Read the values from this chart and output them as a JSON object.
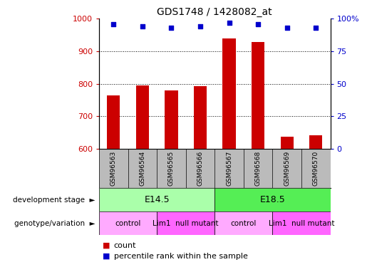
{
  "title": "GDS1748 / 1428082_at",
  "samples": [
    "GSM96563",
    "GSM96564",
    "GSM96565",
    "GSM96566",
    "GSM96567",
    "GSM96568",
    "GSM96569",
    "GSM96570"
  ],
  "counts": [
    765,
    795,
    780,
    792,
    940,
    928,
    637,
    642
  ],
  "percentiles": [
    96,
    94,
    93,
    94,
    97,
    96,
    93,
    93
  ],
  "ylim_left": [
    600,
    1000
  ],
  "ylim_right": [
    0,
    100
  ],
  "yticks_left": [
    600,
    700,
    800,
    900,
    1000
  ],
  "yticks_right": [
    0,
    25,
    50,
    75,
    100
  ],
  "ytick_labels_right": [
    "0",
    "25",
    "50",
    "75",
    "100%"
  ],
  "bar_color": "#CC0000",
  "dot_color": "#0000CC",
  "sample_bg": "#BBBBBB",
  "dev_stage_groups": [
    {
      "label": "E14.5",
      "start": 0,
      "end": 3,
      "color": "#AAFFAA"
    },
    {
      "label": "E18.5",
      "start": 4,
      "end": 7,
      "color": "#55EE55"
    }
  ],
  "genotype_groups": [
    {
      "label": "control",
      "start": 0,
      "end": 1,
      "color": "#FFAAFF"
    },
    {
      "label": "Lim1  null mutant",
      "start": 2,
      "end": 3,
      "color": "#FF66FF"
    },
    {
      "label": "control",
      "start": 4,
      "end": 5,
      "color": "#FFAAFF"
    },
    {
      "label": "Lim1  null mutant",
      "start": 6,
      "end": 7,
      "color": "#FF66FF"
    }
  ],
  "dev_stage_label": "development stage",
  "genotype_label": "genotype/variation",
  "legend_count_label": "count",
  "legend_pct_label": "percentile rank within the sample",
  "left_ylabel_color": "#CC0000",
  "right_ylabel_color": "#0000CC"
}
